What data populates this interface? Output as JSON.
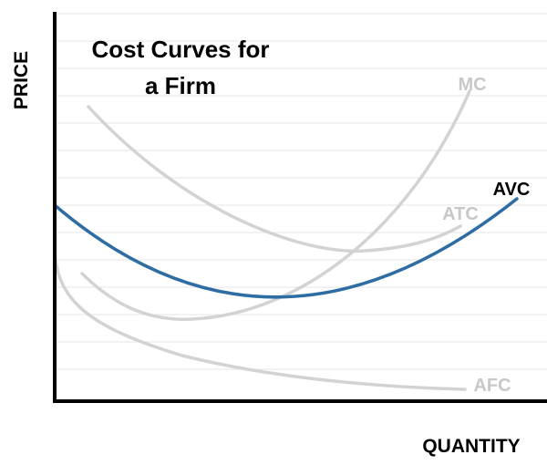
{
  "title_lines": [
    "Cost Curves for",
    "a Firm"
  ],
  "axes": {
    "y_label": "PRICE",
    "x_label": "QUANTITY"
  },
  "curves": [
    {
      "label": "MC"
    },
    {
      "label": "ATC"
    },
    {
      "label": "AVC"
    },
    {
      "label": "AFC"
    }
  ]
}
